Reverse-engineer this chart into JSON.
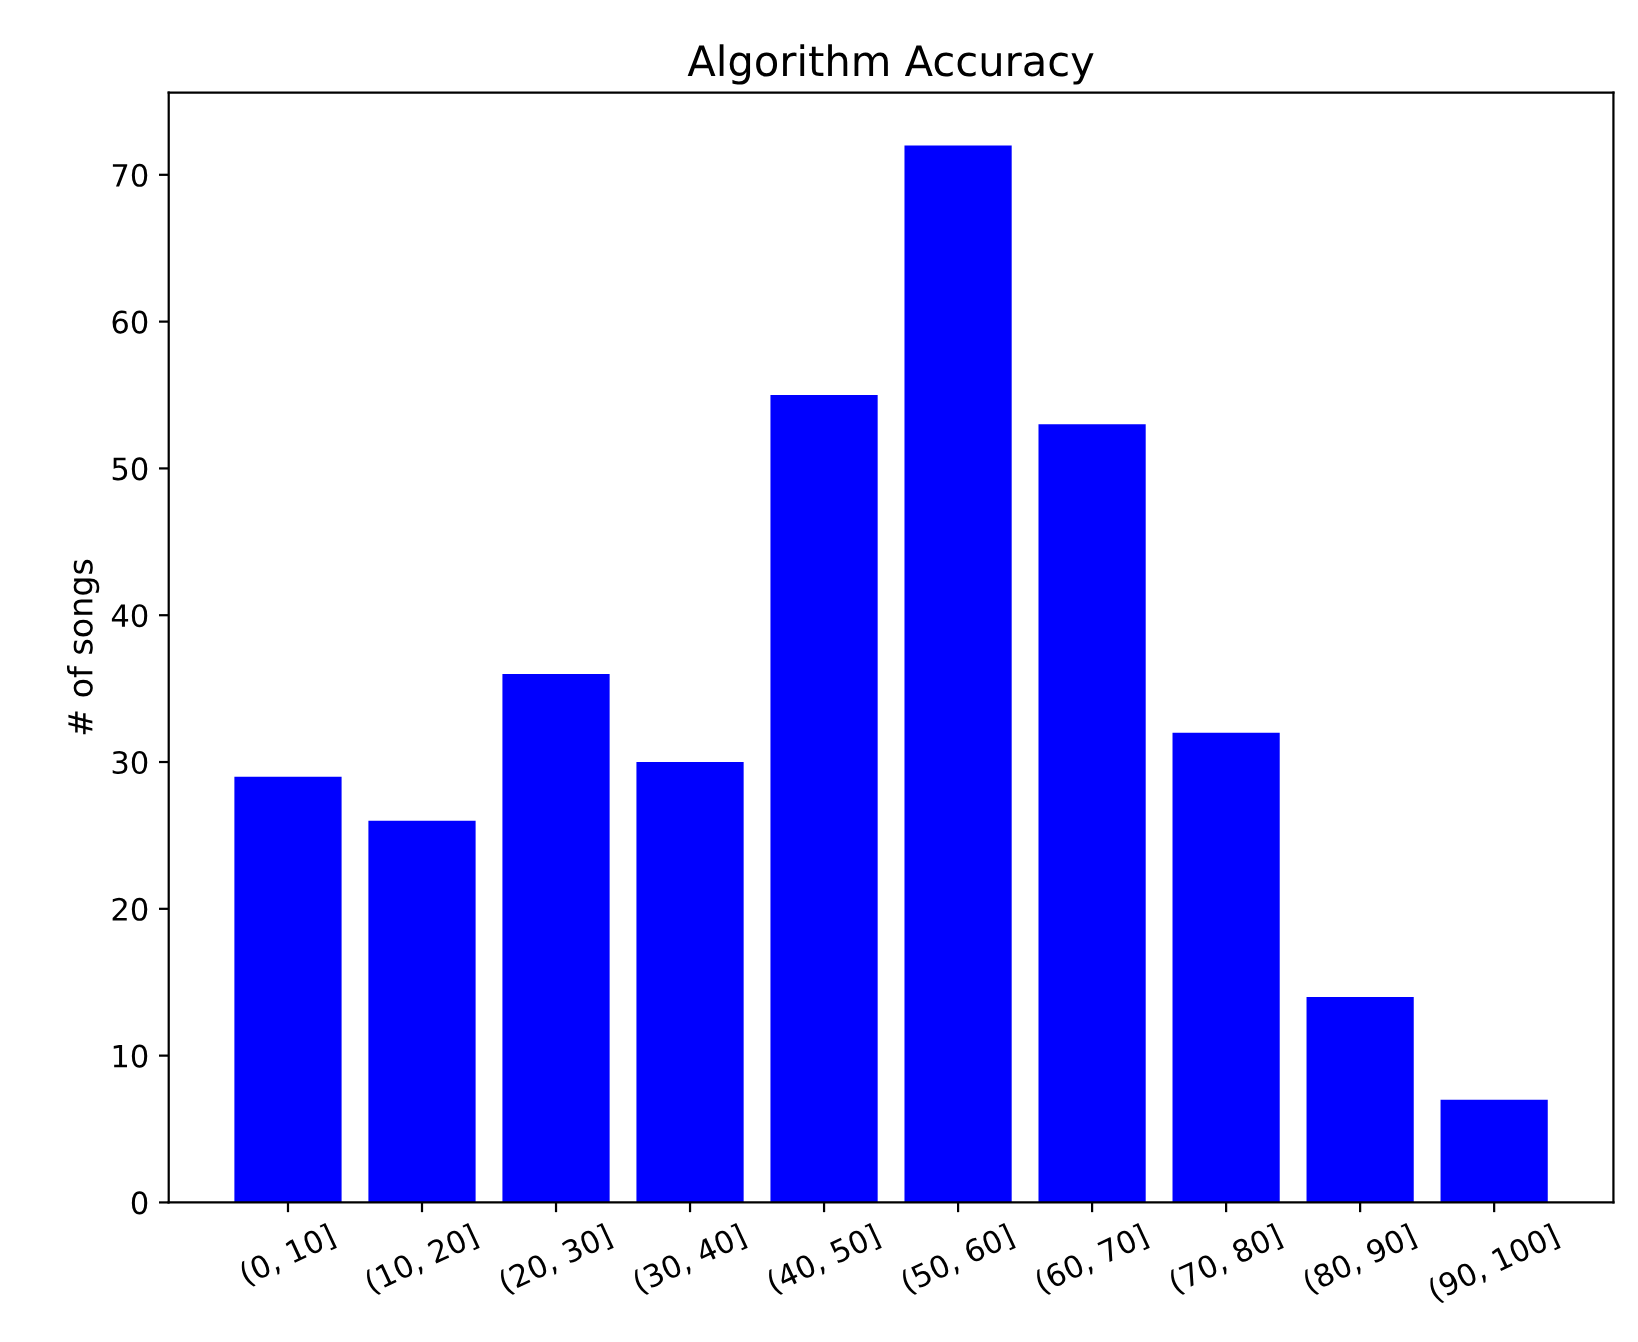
{
  "chart_data": {
    "type": "bar",
    "title": "Algorithm Accuracy",
    "ylabel": "# of songs",
    "categories": [
      "(0, 10]",
      "(10, 20]",
      "(20, 30]",
      "(30, 40]",
      "(40, 50]",
      "(50, 60]",
      "(60, 70]",
      "(70, 80]",
      "(80, 90]",
      "(90, 100]"
    ],
    "values": [
      29,
      26,
      36,
      30,
      55,
      72,
      53,
      32,
      14,
      7
    ],
    "color": "#0000ff",
    "ylim": [
      0,
      75.6
    ],
    "yticks": [
      0,
      10,
      20,
      30,
      40,
      50,
      60,
      70
    ]
  }
}
